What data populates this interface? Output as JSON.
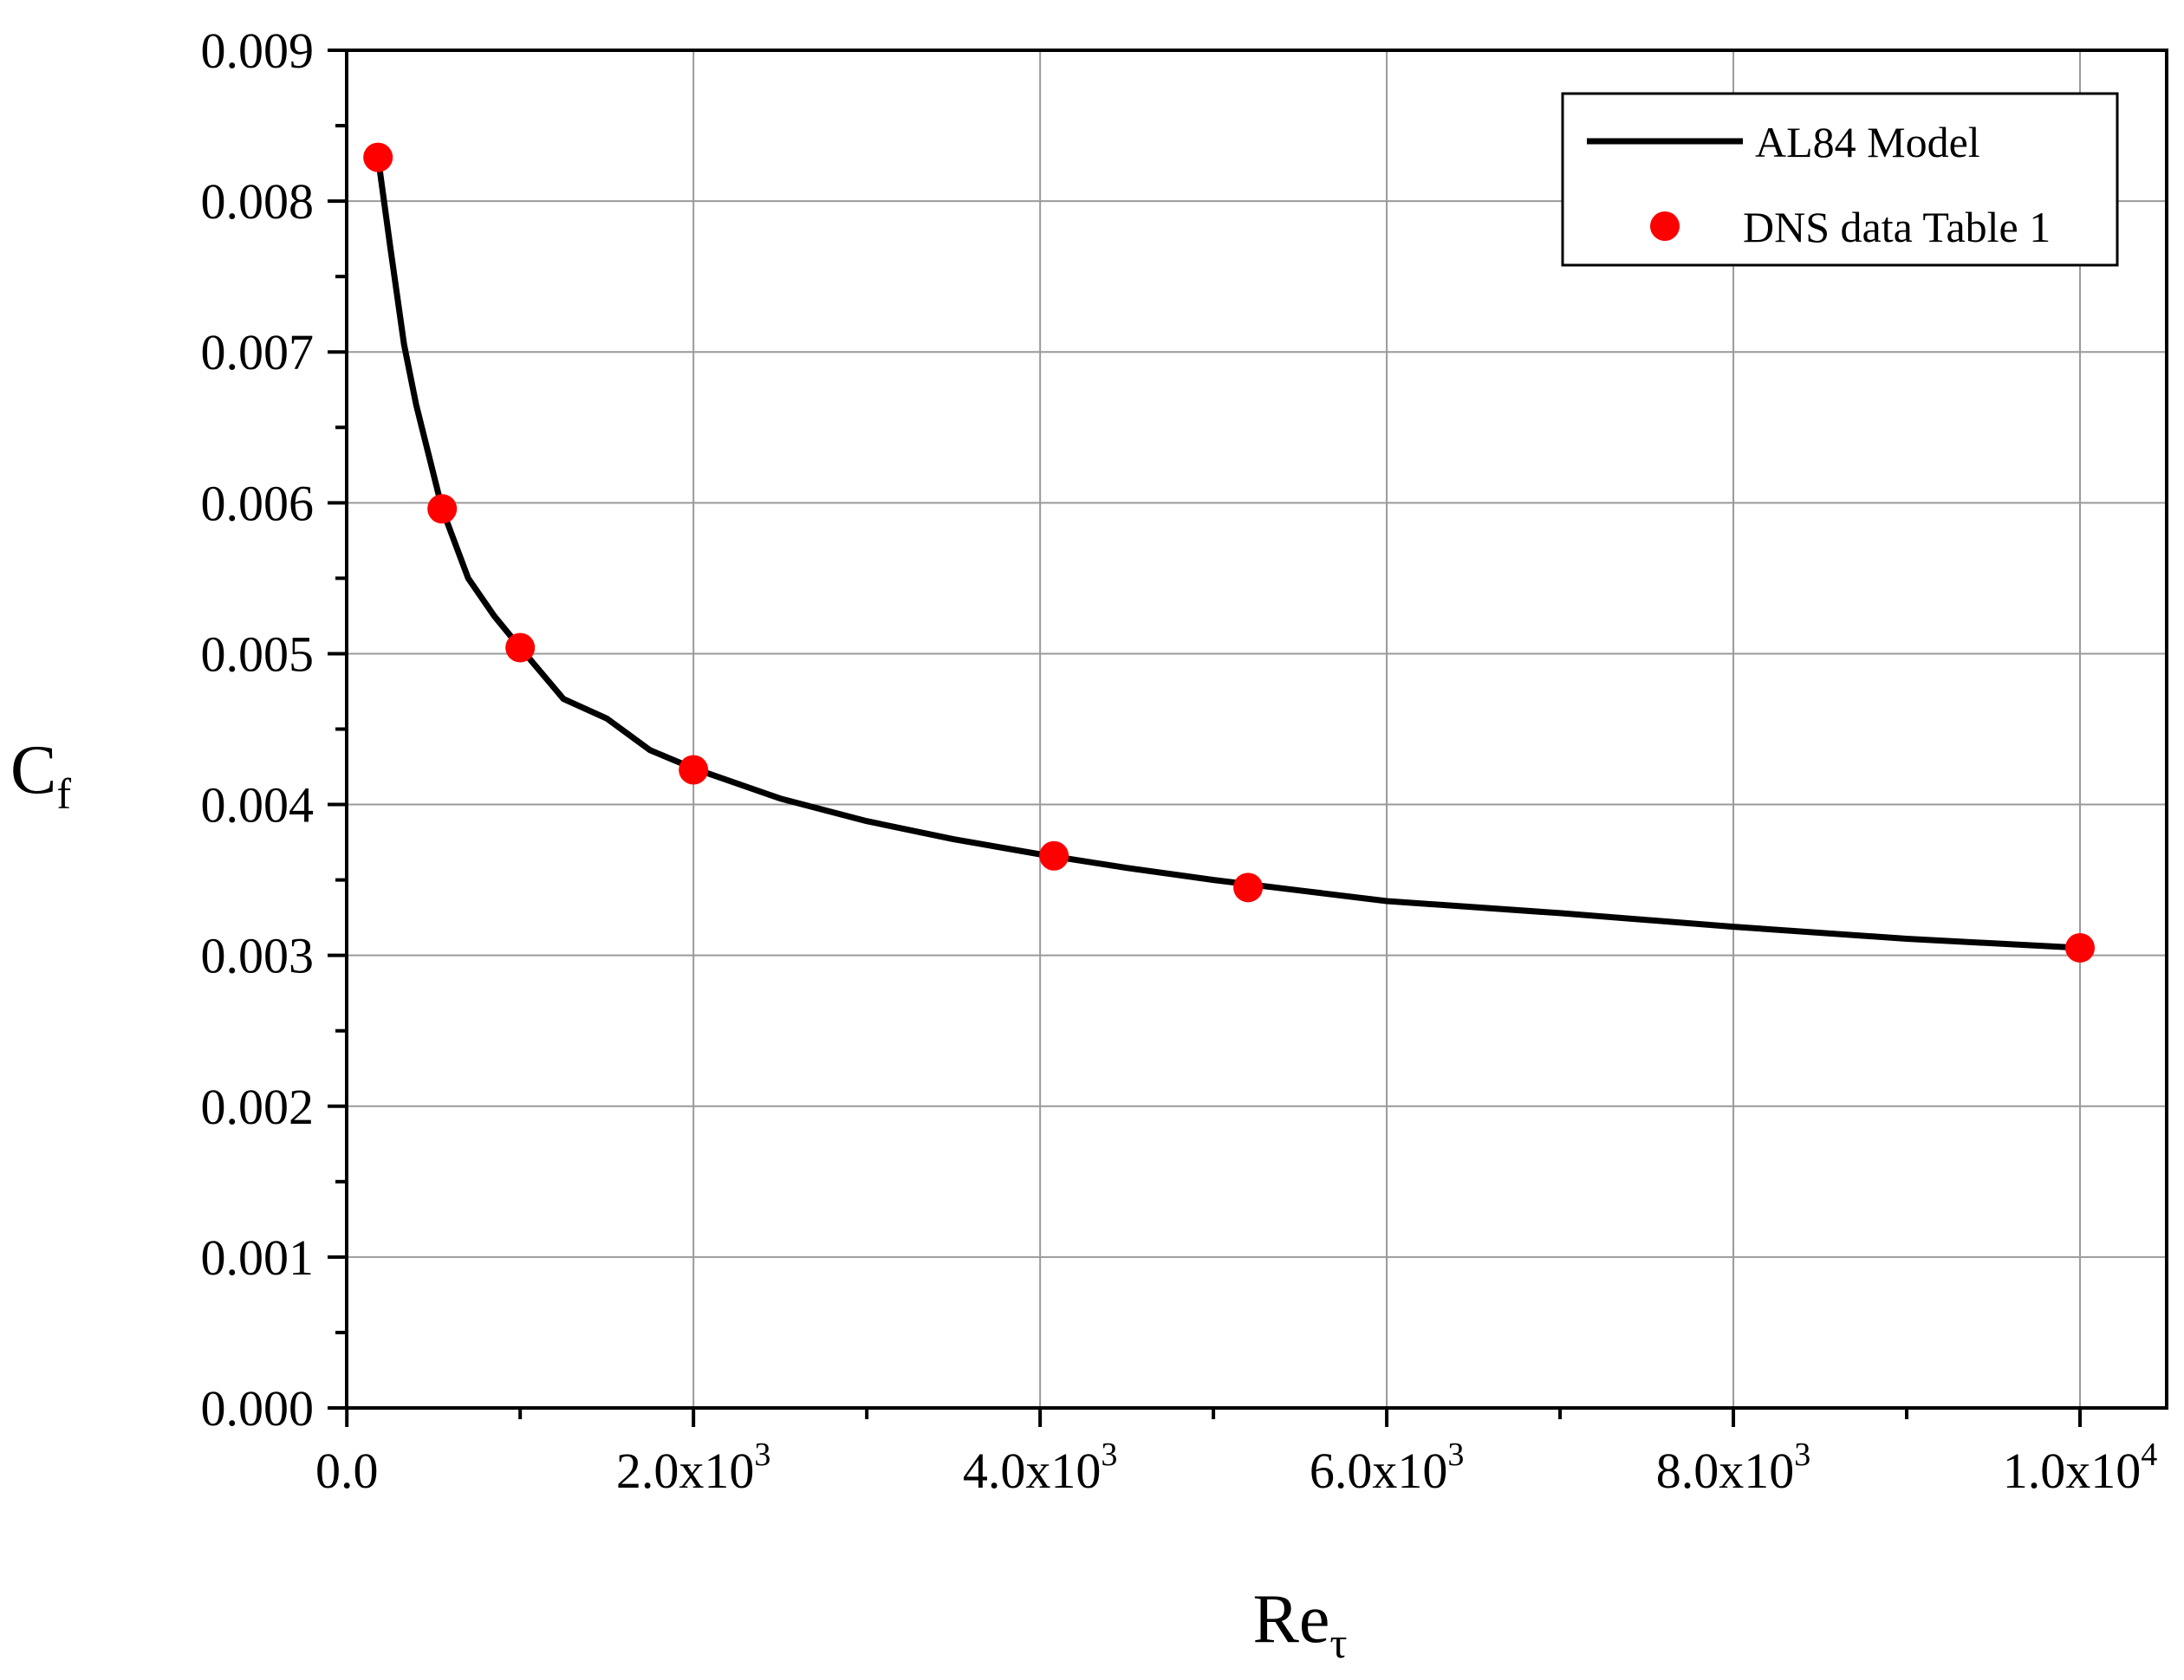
{
  "chart_data": {
    "type": "line",
    "xlabel": "Re",
    "xlabel_subscript": "τ",
    "ylabel": "C",
    "ylabel_subscript": "f",
    "xlim": [
      -1.0,
      10500
    ],
    "ylim": [
      0,
      0.009
    ],
    "grid": true,
    "legend_placement": "top-right",
    "x_ticks": [
      {
        "value": 0,
        "mantissa": "0.0",
        "exp": ""
      },
      {
        "value": 2000,
        "mantissa": "2.0x10",
        "exp": "3"
      },
      {
        "value": 4000,
        "mantissa": "4.0x10",
        "exp": "3"
      },
      {
        "value": 6000,
        "mantissa": "6.0x10",
        "exp": "3"
      },
      {
        "value": 8000,
        "mantissa": "8.0x10",
        "exp": "3"
      },
      {
        "value": 10000,
        "mantissa": "1.0x10",
        "exp": "4"
      }
    ],
    "y_ticks": [
      {
        "value": 0.0,
        "label": "0.000"
      },
      {
        "value": 0.001,
        "label": "0.001"
      },
      {
        "value": 0.002,
        "label": "0.002"
      },
      {
        "value": 0.003,
        "label": "0.003"
      },
      {
        "value": 0.004,
        "label": "0.004"
      },
      {
        "value": 0.005,
        "label": "0.005"
      },
      {
        "value": 0.006,
        "label": "0.006"
      },
      {
        "value": 0.007,
        "label": "0.007"
      },
      {
        "value": 0.008,
        "label": "0.008"
      },
      {
        "value": 0.009,
        "label": "0.009"
      }
    ],
    "series": [
      {
        "name": "AL84 Model",
        "kind": "line",
        "color": "#000000",
        "x": [
          180,
          250,
          330,
          400,
          550,
          700,
          850,
          1000,
          1250,
          1500,
          1750,
          2000,
          2500,
          3000,
          3500,
          4000,
          4500,
          5000,
          5500,
          6000,
          7000,
          8000,
          9000,
          10000
        ],
        "y": [
          0.00829,
          0.0077,
          0.00705,
          0.00665,
          0.00596,
          0.0055,
          0.00525,
          0.00504,
          0.0047,
          0.00457,
          0.00436,
          0.00424,
          0.00404,
          0.00389,
          0.00377,
          0.00367,
          0.00358,
          0.0035,
          0.00343,
          0.00336,
          0.00328,
          0.00319,
          0.00311,
          0.00305
        ]
      },
      {
        "name": "DNS data Table 1",
        "kind": "scatter",
        "color": "#ff0000",
        "x": [
          180,
          550,
          1000,
          2000,
          4080,
          5200,
          10000
        ],
        "y": [
          0.00829,
          0.00596,
          0.00504,
          0.00423,
          0.00366,
          0.00345,
          0.00305
        ]
      }
    ]
  }
}
